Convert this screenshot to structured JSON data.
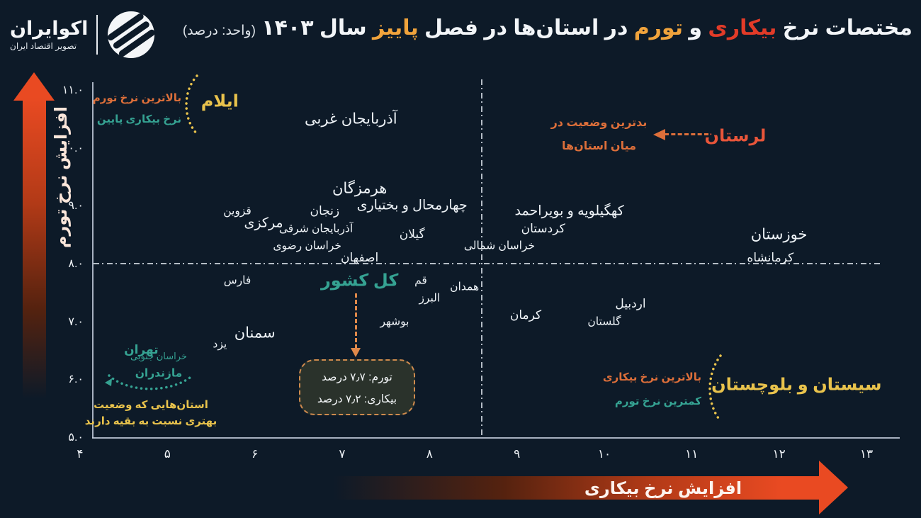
{
  "header": {
    "title_parts": [
      {
        "text": "مختصات نرخ ",
        "color": "#f2f5f8"
      },
      {
        "text": "بیکاری",
        "color": "#e23b28"
      },
      {
        "text": " و ",
        "color": "#f2f5f8"
      },
      {
        "text": "تورم",
        "color": "#f0a33c"
      },
      {
        "text": " در استان‌ها در فصل ",
        "color": "#f2f5f8"
      },
      {
        "text": "پاییز",
        "color": "#f0a33c"
      },
      {
        "text": " سال ۱۴۰۳ ",
        "color": "#f2f5f8"
      },
      {
        "text": "(واحد: درصد)",
        "color": "#dfe5ea",
        "small": true
      }
    ],
    "brand": {
      "name": "اکوایران",
      "subtitle": "تصویر اقتصاد ایران"
    }
  },
  "axes": {
    "y_label": "افزایش نرخ تورم",
    "x_label": "افزایش نرخ بیکاری",
    "y_ticks": [
      {
        "label": "۱۱.۰",
        "value": 11
      },
      {
        "label": "۱۰.۰",
        "value": 10
      },
      {
        "label": "۹.۰",
        "value": 9
      },
      {
        "label": "۸.۰",
        "value": 8
      },
      {
        "label": "۷.۰",
        "value": 7
      },
      {
        "label": "۶.۰",
        "value": 6
      },
      {
        "label": "۵.۰",
        "value": 5
      }
    ],
    "x_ticks": [
      {
        "label": "۴",
        "value": 4
      },
      {
        "label": "۵",
        "value": 5
      },
      {
        "label": "۶",
        "value": 6
      },
      {
        "label": "۷",
        "value": 7
      },
      {
        "label": "۸",
        "value": 8
      },
      {
        "label": "۹",
        "value": 9
      },
      {
        "label": "۱۰",
        "value": 10
      },
      {
        "label": "۱۱",
        "value": 11
      },
      {
        "label": "۱۲",
        "value": 12
      },
      {
        "label": "۱۳",
        "value": 13
      }
    ]
  },
  "chart_data": {
    "type": "scatter",
    "title": "مختصات نرخ بیکاری و تورم در استان‌ها در فصل پاییز سال ۱۴۰۳",
    "unit": "(واحد: درصد)",
    "xlabel": "افزایش نرخ بیکاری",
    "ylabel": "افزایش نرخ تورم",
    "xlim": [
      4,
      13
    ],
    "ylim": [
      5,
      11
    ],
    "grid": false,
    "reference_lines": {
      "horizontal_inflation": 8.0,
      "vertical_unemployment": 8.6
    },
    "national": {
      "label": "کل کشور",
      "inflation": 7.7,
      "unemployment": 7.2
    },
    "points": [
      {
        "name": "ایلام",
        "x": 5.6,
        "y": 10.8,
        "size": "xl",
        "color": "yellow",
        "bold": true
      },
      {
        "name": "آذربایجان غربی",
        "x": 7.1,
        "y": 10.5,
        "size": "lg",
        "color": "white",
        "bold": false
      },
      {
        "name": "لرستان",
        "x": 11.5,
        "y": 10.2,
        "size": "xl",
        "color": "red",
        "bold": true
      },
      {
        "name": "هرمزگان",
        "x": 7.2,
        "y": 9.3,
        "size": "lg",
        "color": "white",
        "bold": false
      },
      {
        "name": "چهارمحال و بختیاری",
        "x": 7.8,
        "y": 9.0,
        "size": "ml",
        "color": "white",
        "bold": false
      },
      {
        "name": "قزوین",
        "x": 5.8,
        "y": 8.9,
        "size": "sm",
        "color": "white",
        "bold": false
      },
      {
        "name": "زنجان",
        "x": 6.8,
        "y": 8.9,
        "size": "md",
        "color": "white",
        "bold": false
      },
      {
        "name": "مرکزی",
        "x": 6.1,
        "y": 8.7,
        "size": "ml",
        "color": "white",
        "bold": false
      },
      {
        "name": "آذربایجان شرقی",
        "x": 6.7,
        "y": 8.6,
        "size": "sm",
        "color": "white",
        "bold": false
      },
      {
        "name": "گیلان",
        "x": 7.8,
        "y": 8.5,
        "size": "md",
        "color": "white",
        "bold": false
      },
      {
        "name": "کهگیلویه و بویراحمد",
        "x": 9.6,
        "y": 8.9,
        "size": "ml",
        "color": "white",
        "bold": false
      },
      {
        "name": "کردستان",
        "x": 9.3,
        "y": 8.6,
        "size": "md",
        "color": "white",
        "bold": false
      },
      {
        "name": "خراسان رضوی",
        "x": 6.6,
        "y": 8.3,
        "size": "sm",
        "color": "white",
        "bold": false
      },
      {
        "name": "خراسان شمالی",
        "x": 8.8,
        "y": 8.3,
        "size": "sm",
        "color": "white",
        "bold": false
      },
      {
        "name": "خوزستان",
        "x": 12.0,
        "y": 8.5,
        "size": "lg",
        "color": "white",
        "bold": false
      },
      {
        "name": "کرمانشاه",
        "x": 11.9,
        "y": 8.1,
        "size": "md",
        "color": "white",
        "bold": false
      },
      {
        "name": "اصفهان",
        "x": 7.2,
        "y": 8.1,
        "size": "md",
        "color": "white",
        "bold": false
      },
      {
        "name": "فارس",
        "x": 5.8,
        "y": 7.7,
        "size": "sm",
        "color": "white",
        "bold": false
      },
      {
        "name": "قم",
        "x": 7.9,
        "y": 7.7,
        "size": "sm",
        "color": "white",
        "bold": false
      },
      {
        "name": "کل کشور",
        "x": 7.2,
        "y": 7.7,
        "size": "xl",
        "color": "teal",
        "bold": true
      },
      {
        "name": "همدان",
        "x": 8.4,
        "y": 7.6,
        "size": "sm",
        "color": "white",
        "bold": false
      },
      {
        "name": "البرز",
        "x": 8.0,
        "y": 7.4,
        "size": "sm",
        "color": "white",
        "bold": false
      },
      {
        "name": "کرمان",
        "x": 9.1,
        "y": 7.1,
        "size": "md",
        "color": "white",
        "bold": false
      },
      {
        "name": "اردبیل",
        "x": 10.3,
        "y": 7.3,
        "size": "md",
        "color": "white",
        "bold": false
      },
      {
        "name": "گلستان",
        "x": 10.0,
        "y": 7.0,
        "size": "sm",
        "color": "white",
        "bold": false
      },
      {
        "name": "سمنان",
        "x": 6.0,
        "y": 6.8,
        "size": "lg",
        "color": "white",
        "bold": false
      },
      {
        "name": "بوشهر",
        "x": 7.6,
        "y": 7.0,
        "size": "sm",
        "color": "white",
        "bold": false
      },
      {
        "name": "یزد",
        "x": 5.6,
        "y": 6.6,
        "size": "sm",
        "color": "white",
        "bold": false
      },
      {
        "name": "تهران",
        "x": 4.7,
        "y": 6.5,
        "size": "md",
        "color": "teal",
        "bold": true
      },
      {
        "name": "خراسان جنوبی",
        "x": 4.9,
        "y": 6.4,
        "size": "xs",
        "color": "teal",
        "bold": false
      },
      {
        "name": "مازندران",
        "x": 4.9,
        "y": 6.1,
        "size": "sm",
        "color": "teal",
        "bold": true
      },
      {
        "name": "سیستان و بلوچستان",
        "x": 12.2,
        "y": 5.9,
        "size": "xl",
        "color": "yellow",
        "bold": true
      }
    ]
  },
  "annotations": {
    "ilam": {
      "line1": "بالاترین نرخ تورم",
      "line2": "نرخ بیکاری پایین"
    },
    "lorestan": {
      "line1": "بدترین وضعیت در",
      "line2": "میان استان‌ها"
    },
    "sistan": {
      "line1": "بالاترین نرخ بیکاری",
      "line2": "کمترین نرخ تورم"
    },
    "better": {
      "line1": "استان‌هایی که وضعیت",
      "line2": "بهتری نسبت به بقیه دارند"
    },
    "national_box": {
      "line1": "تورم: ۷٫۷ درصد",
      "line2": "بیکاری: ۷٫۲ درصد"
    }
  },
  "colors": {
    "background": "#0d1a28",
    "accent_red": "#e94a22",
    "accent_orange": "#dd6f3a",
    "accent_yellow": "#e9c34c",
    "accent_teal": "#35a292"
  }
}
